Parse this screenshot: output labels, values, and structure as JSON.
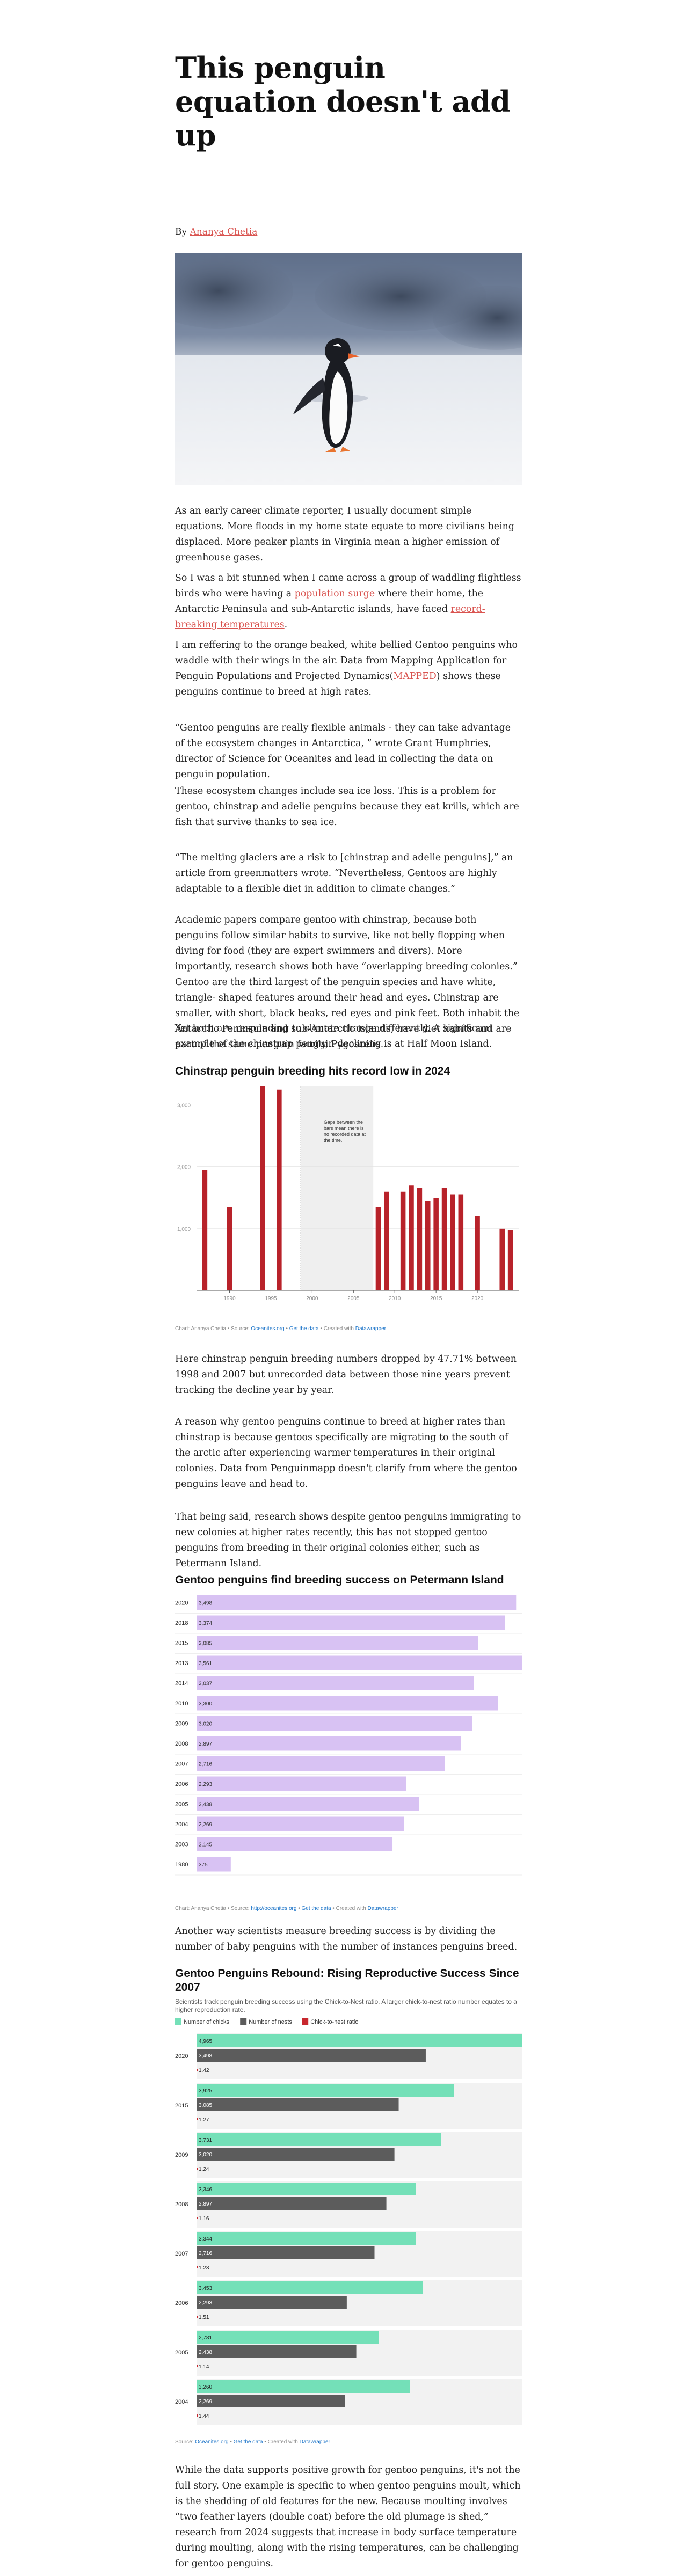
{
  "article": {
    "title": "This penguin equation doesn't add up",
    "byline_prefix": "By ",
    "author": "Ananya Chetia",
    "paragraphs": {
      "p1": "As an early career climate reporter, I usually document simple equations. More floods in my home state equate to more civilians being displaced. More peaker plants in Virginia mean a higher emission of greenhouse gases.",
      "p2a": "So I was a bit stunned when I came across a group of waddling flightless birds who were having a ",
      "p2_link1": "population surge",
      "p2b": " where their home, the Antarctic Peninsula and sub-Antarctic islands, have faced ",
      "p2_link2": "record-breaking temperatures",
      "p2c": ".",
      "p3a": "I am reffering to the orange beaked, white bellied Gentoo penguins who waddle with their wings in the air. Data from Mapping Application for Penguin Populations and Projected Dynamics(",
      "p3_link": "MAPPED",
      "p3b": ") shows these penguins continue to breed at high rates.",
      "p4": "“Gentoo penguins are really flexible animals - they can take advantage of the ecosystem changes in Antarctica, ” wrote Grant Humphries, director of Science for Oceanites and lead in collecting the data on penguin population.",
      "p5": "These ecosystem changes include sea ice loss. This is a problem for gentoo, chinstrap and adelie penguins because they eat krills, which are fish that survive thanks to sea ice.",
      "p6": "“The melting glaciers are a risk to [chinstrap and adelie penguins],” an article from greenmatters wrote. “Nevertheless, Gentoos are highly adaptable to a flexible diet in addition to climate changes.”",
      "p7": "Academic papers compare gentoo with chinstrap, because both penguins follow similar habits to survive, like not belly flopping when diving for food (they are expert swimmers and divers). More importantly, research shows both have “overlapping breeding colonies.” Gentoo are the third largest of the penguin species and have white, triangle- shaped features around their head and eyes. Chinstrap are smaller, with short, black beaks, red eyes and pink feet. Both inhabit the Antarctic Peninsula and sub-Antarctic islands, have diet habits and are part of the same penguin family, Pygoscelis.",
      "p8": "Yet both are responding to climate change differently. A significant example of the chinstrap penguin declining is at Half Moon Island.",
      "p9": "Here chinstrap penguin breeding numbers dropped by 47.71% between 1998 and 2007 but unrecorded data between those nine years prevent tracking the decline year by year.",
      "p10": "A reason why gentoo penguins continue to breed at higher rates than chinstrap is because gentoos specifically are migrating to the south of the arctic after experiencing warmer temperatures in their original colonies. Data from Penguinmapp doesn't clarify from where the gentoo penguins leave and head to.",
      "p11": "That being said, research shows despite gentoo penguins immigrating to new colonies at higher rates recently, this has not stopped gentoo penguins from breeding in their original colonies either, such as Petermann Island.",
      "p12": "Another way scientists measure breeding success is by dividing the number of baby penguins with the number of instances penguins breed.",
      "p13": "While the data supports positive growth for gentoo penguins, it's not the full story. One example is specific to when gentoo penguins moult, which is the shedding of old features for the new. Because moulting involves “two feather layers (double coat) before the old plumage is shed,” research from 2024 suggests that increase in body surface temperature during moulting, along with the rising temperatures, can be challenging for gentoo penguins."
    }
  },
  "charts": {
    "c1": {
      "title": "Chinstrap penguin breeding hits record low in 2024",
      "annotation": "Gaps between the bars mean there is no recorded data at the time.",
      "credit": "Chart: Ananya Chetia • Source: ",
      "credit_src": "Oceanites.org",
      "credit_sep": " • ",
      "credit_get": "Get the data",
      "credit_tail": " • Created with ",
      "credit_tool": "Datawrapper"
    },
    "c2": {
      "title": "Gentoo penguins find breeding success on Petermann Island",
      "credit": "Chart: Ananya Chetia • Source: ",
      "credit_src": "http://oceanites.org",
      "credit_sep": " • ",
      "credit_get": "Get the data",
      "credit_tail": " • Created with ",
      "credit_tool": "Datawrapper"
    },
    "c3": {
      "title": "Gentoo Penguins Rebound: Rising Reproductive Success Since 2007",
      "subtitle": "Scientists track penguin breeding success using the Chick-to-Nest ratio. A larger chick-to-nest ratio number equates to a higher reproduction rate.",
      "credit": "Source: ",
      "credit_src": "Oceanites.org",
      "credit_sep": " • ",
      "credit_get": "Get the data",
      "credit_tail": " • Created with ",
      "credit_tool": "Datawrapper"
    }
  },
  "colors": {
    "chinstrap_bar": "#b8222a",
    "petermann_bar": "#d8c2f3",
    "chicks": "#74e0b8",
    "nests": "#5c5c5c",
    "ratio": "#c8282e"
  },
  "chart_data": [
    {
      "type": "bar",
      "title": "Chinstrap penguin breeding hits record low in 2024",
      "xlim": [
        1986,
        2025
      ],
      "ylim": [
        0,
        3300
      ],
      "x_ticks": [
        "1990",
        "1995",
        "2000",
        "2005",
        "2010",
        "2015",
        "2020"
      ],
      "y_ticks": [
        "1,000",
        "2,000",
        "3,000"
      ],
      "x": [
        1987,
        1990,
        1994,
        1996,
        2008,
        2009,
        2011,
        2012,
        2013,
        2014,
        2015,
        2016,
        2017,
        2018,
        2020,
        2023,
        2024
      ],
      "values": [
        1950,
        1350,
        3300,
        3250,
        1350,
        1600,
        1600,
        1700,
        1650,
        1450,
        1500,
        1650,
        1550,
        1550,
        1200,
        1000,
        980
      ]
    },
    {
      "type": "bar",
      "orientation": "horizontal",
      "title": "Gentoo penguins find breeding success on Petermann Island",
      "categories": [
        "2020",
        "2018",
        "2015",
        "2013",
        "2014",
        "2010",
        "2009",
        "2008",
        "2007",
        "2006",
        "2005",
        "2004",
        "2003",
        "1980"
      ],
      "labels": [
        "3,498",
        "3,374",
        "3,085",
        "3,561",
        "3,037",
        "3,300",
        "3,020",
        "2,897",
        "2,716",
        "2,293",
        "2,438",
        "2,269",
        "2,145",
        "375"
      ],
      "values": [
        3498,
        3374,
        3085,
        3561,
        3037,
        3300,
        3020,
        2897,
        2716,
        2293,
        2438,
        2269,
        2145,
        375
      ]
    },
    {
      "type": "bar",
      "orientation": "horizontal",
      "title": "Gentoo Penguins Rebound: Rising Reproductive Success Since 2007",
      "legend": [
        "Number of chicks",
        "Number of nests",
        "Chick-to-nest ratio"
      ],
      "categories": [
        "2020",
        "2015",
        "2009",
        "2008",
        "2007",
        "2006",
        "2005",
        "2004"
      ],
      "series": [
        {
          "name": "Number of chicks",
          "labels": [
            "4,965",
            "3,925",
            "3,731",
            "3,346",
            "3,344",
            "3,453",
            "2,781",
            "3,260"
          ],
          "values": [
            4965,
            3925,
            3731,
            3346,
            3344,
            3453,
            2781,
            3260
          ]
        },
        {
          "name": "Number of nests",
          "labels": [
            "3,498",
            "3,085",
            "3,020",
            "2,897",
            "2,716",
            "2,293",
            "2,438",
            "2,269"
          ],
          "values": [
            3498,
            3085,
            3020,
            2897,
            2716,
            2293,
            2438,
            2269
          ]
        },
        {
          "name": "Chick-to-nest ratio",
          "labels": [
            "1.42",
            "1.27",
            "1.24",
            "1.16",
            "1.23",
            "1.51",
            "1.14",
            "1.44"
          ],
          "values": [
            1.42,
            1.27,
            1.24,
            1.16,
            1.23,
            1.51,
            1.14,
            1.44
          ]
        }
      ]
    }
  ]
}
